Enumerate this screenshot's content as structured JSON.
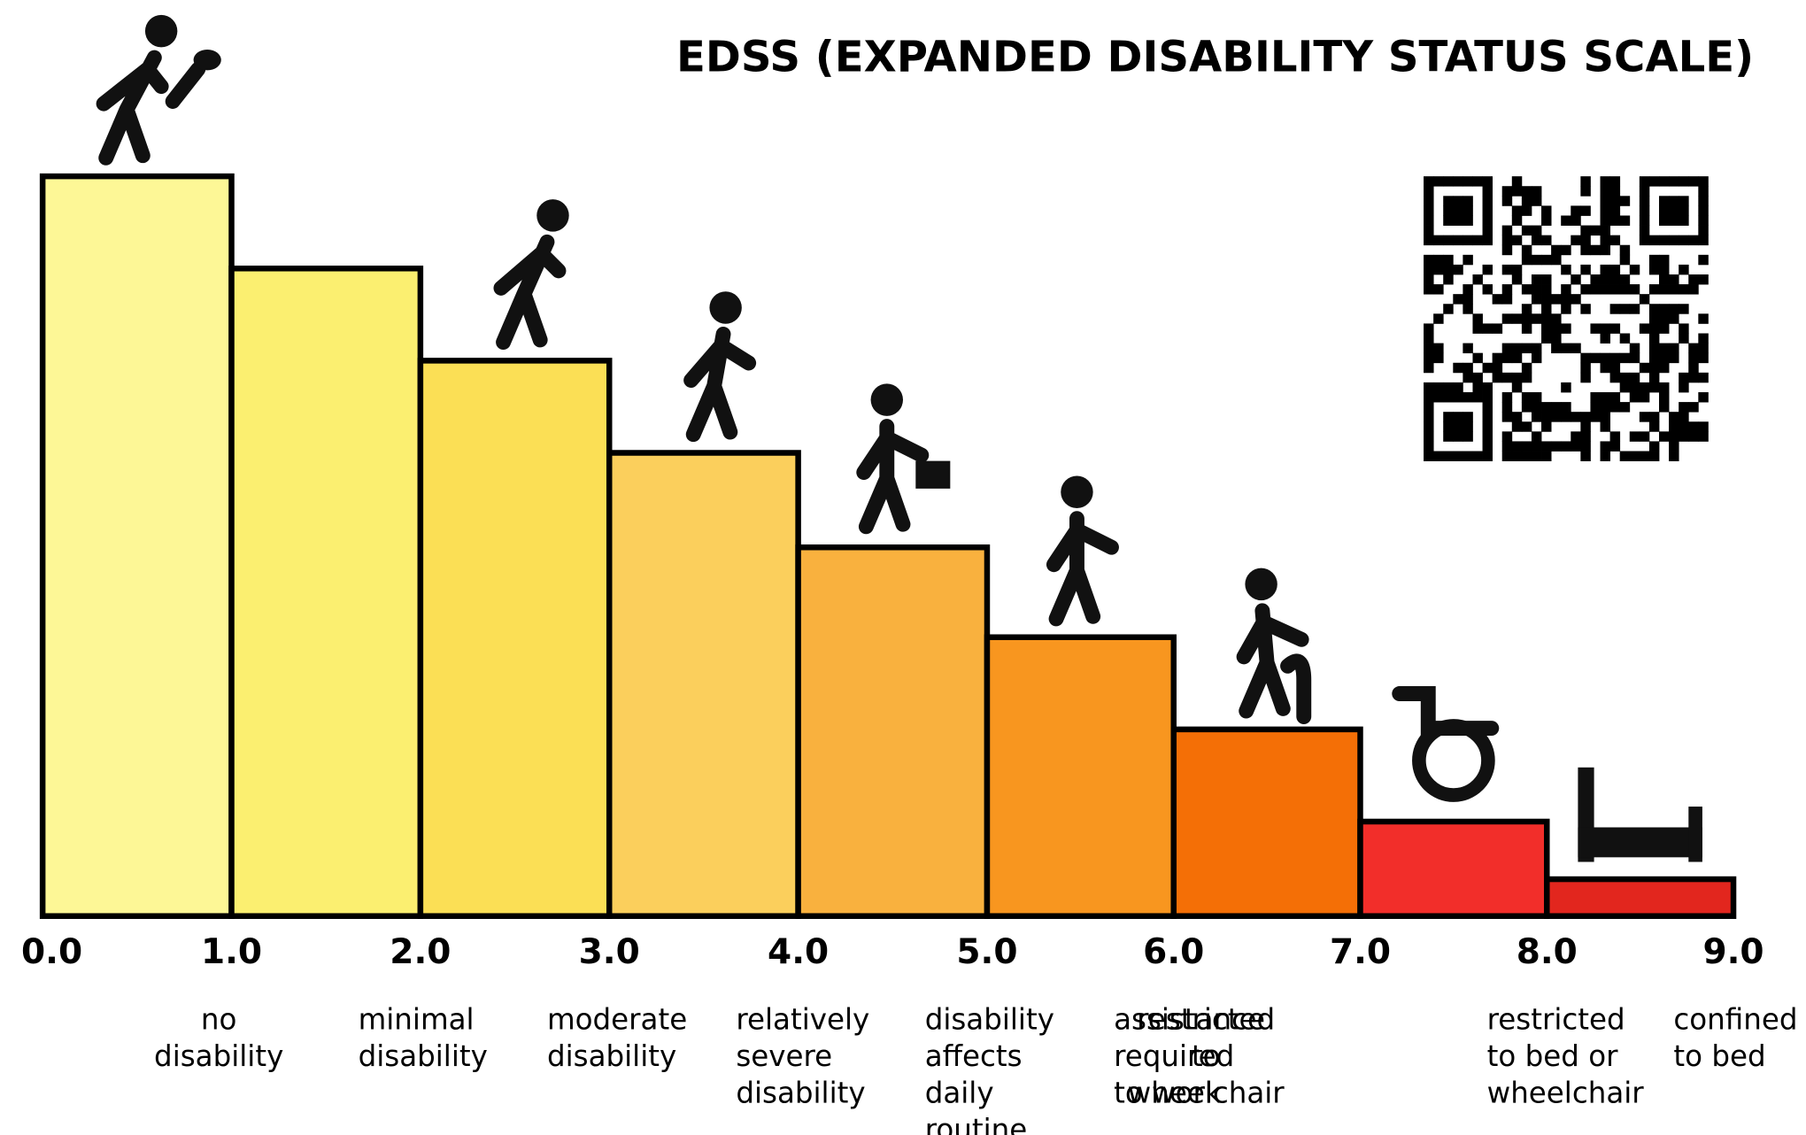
{
  "title": "EDSS (EXPANDED DISABILITY STATUS SCALE)",
  "ticks": [
    "0.0",
    "1.0",
    "2.0",
    "3.0",
    "4.0",
    "5.0",
    "6.0",
    "7.0",
    "8.0",
    "9.0"
  ],
  "steps": [
    {
      "lines": [
        "no",
        "disability"
      ]
    },
    {
      "lines": [
        "minimal",
        "disability"
      ]
    },
    {
      "lines": [
        "moderate",
        "disability"
      ]
    },
    {
      "lines": [
        "relatively",
        "severe",
        "disability"
      ]
    },
    {
      "lines": [
        "disability",
        "affects",
        "daily",
        "routine"
      ]
    },
    {
      "lines": [
        "assistance",
        "required",
        "to work"
      ]
    },
    {
      "lines": [
        "restricted",
        "to",
        "wheelchair"
      ]
    },
    {
      "lines": [
        "restricted",
        "to bed or",
        "wheelchair"
      ]
    },
    {
      "lines": [
        "confined",
        "to bed"
      ]
    }
  ]
}
